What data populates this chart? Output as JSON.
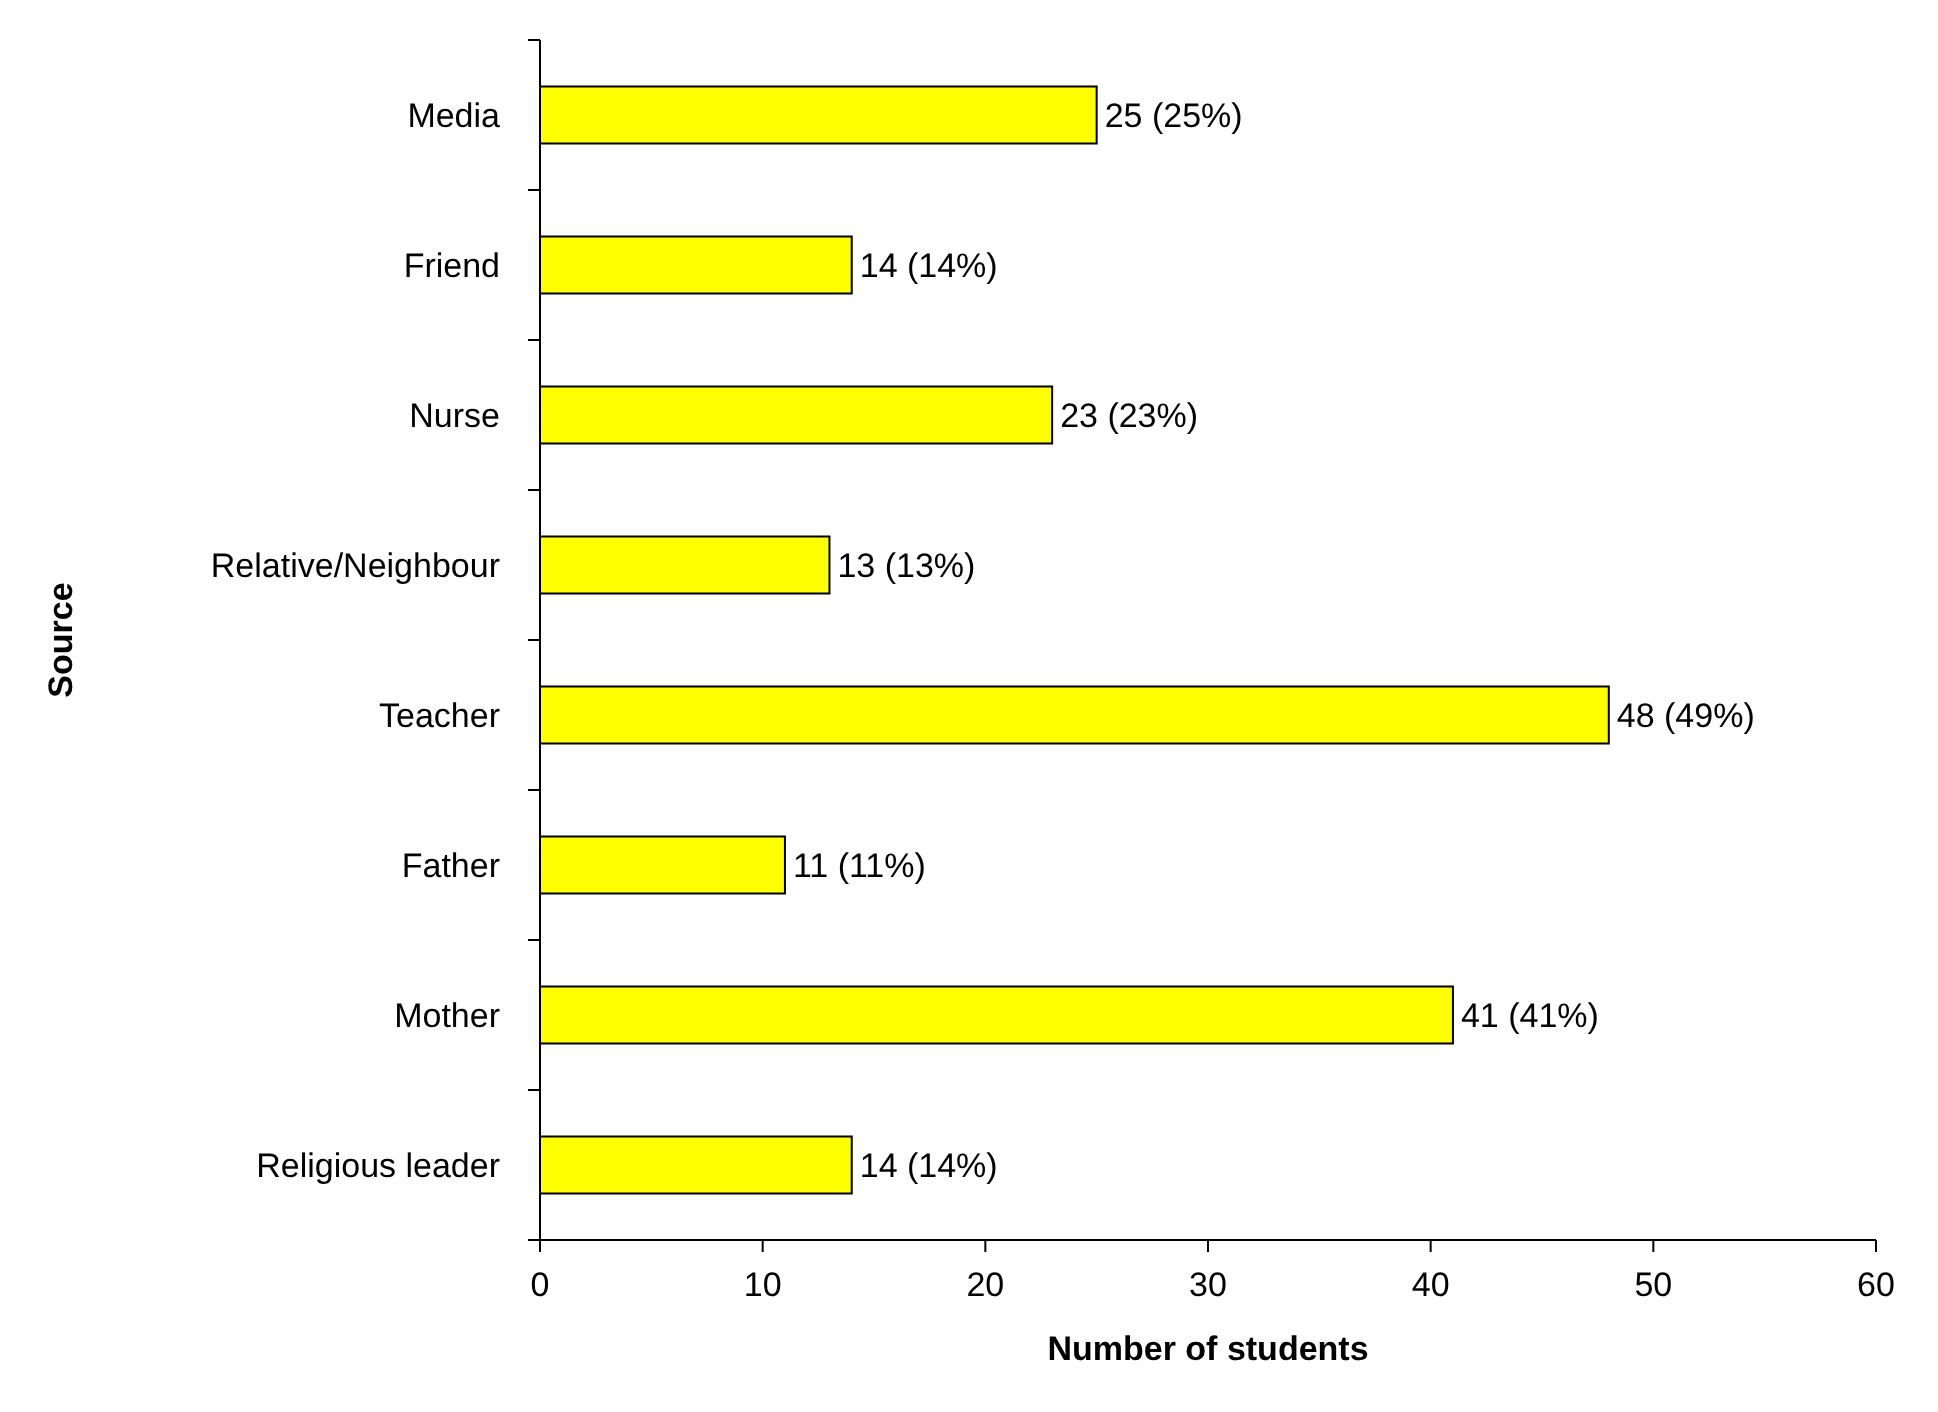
{
  "chart_data": {
    "type": "bar",
    "orientation": "horizontal",
    "xlabel": "Number of students",
    "ylabel": "Source",
    "categories": [
      "Media",
      "Friend",
      "Nurse",
      "Relative/Neighbour",
      "Teacher",
      "Father",
      "Mother",
      "Religious leader"
    ],
    "values": [
      25,
      14,
      23,
      13,
      48,
      11,
      41,
      14
    ],
    "value_labels": [
      "25 (25%)",
      "14 (14%)",
      "23 (23%)",
      "13 (13%)",
      "48 (49%)",
      "11 (11%)",
      "41 (41%)",
      "14 (14%)"
    ],
    "color": "#ffff00",
    "xlim": [
      0,
      60
    ],
    "xticks": [
      0,
      10,
      20,
      30,
      40,
      50,
      60
    ]
  }
}
